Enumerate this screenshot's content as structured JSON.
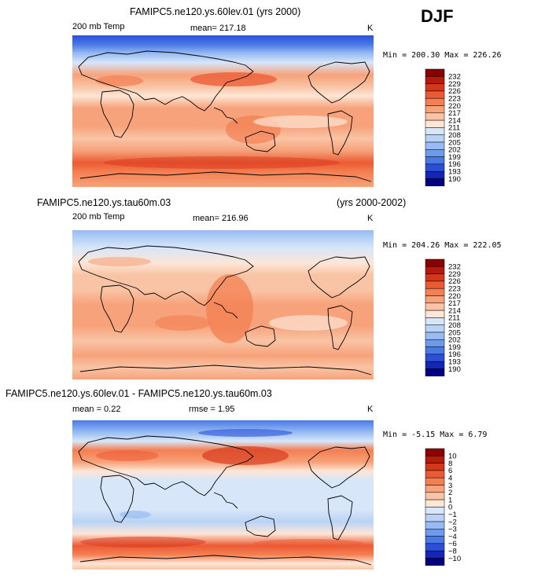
{
  "season_label": "DJF",
  "panels": [
    {
      "title": "FAMIPC5.ne120.ys.60lev.01 (yrs 2000)",
      "title_right": "",
      "left_label": "200 mb Temp",
      "mean_label": "mean= 217.18",
      "rmse_label": "",
      "units": "K",
      "minmax": "Min = 200.30 Max = 226.26",
      "colorbar_labels": [
        "232",
        "229",
        "226",
        "223",
        "220",
        "217",
        "214",
        "211",
        "208",
        "205",
        "202",
        "199",
        "196",
        "193",
        "190"
      ]
    },
    {
      "title": "FAMIPC5.ne120.ys.tau60m.03",
      "title_right": "(yrs 2000-2002)",
      "left_label": "200 mb Temp",
      "mean_label": "mean= 216.96",
      "rmse_label": "",
      "units": "K",
      "minmax": "Min = 204.26 Max = 222.05",
      "colorbar_labels": [
        "232",
        "229",
        "226",
        "223",
        "220",
        "217",
        "214",
        "211",
        "208",
        "205",
        "202",
        "199",
        "196",
        "193",
        "190"
      ]
    },
    {
      "title": "FAMIPC5.ne120.ys.60lev.01 - FAMIPC5.ne120.ys.tau60m.03",
      "title_right": "",
      "left_label": "mean =    0.22",
      "mean_label": "rmse =    1.95",
      "rmse_label": "",
      "units": "K",
      "minmax": "Min =  -5.15 Max =    6.79",
      "colorbar_labels": [
        "10",
        "8",
        "6",
        "4",
        "3",
        "2",
        "1",
        "0",
        "−1",
        "−2",
        "−3",
        "−4",
        "−6",
        "−8",
        "−10"
      ]
    }
  ],
  "colorbar_colors": [
    "#8b0000",
    "#b31b0b",
    "#d6361a",
    "#ec5a33",
    "#f47f52",
    "#f7a27a",
    "#f9c4a5",
    "#fde6d6",
    "#d7e6f8",
    "#b9d3f6",
    "#97bbf2",
    "#6d9bec",
    "#4a79e6",
    "#2a50d8",
    "#1426b5",
    "#000080"
  ],
  "chart_data": [
    {
      "type": "heatmap",
      "title": "FAMIPC5.ne120.ys.60lev.01 (yrs 2000)",
      "variable": "200 mb Temp",
      "units": "K",
      "mean": 217.18,
      "min": 200.3,
      "max": 226.26,
      "levels": [
        190,
        193,
        196,
        199,
        202,
        205,
        208,
        211,
        214,
        217,
        220,
        223,
        226,
        229,
        232
      ],
      "zonal_bands": [
        {
          "lat_from": 90,
          "lat_to": 70,
          "value": 205
        },
        {
          "lat_from": 70,
          "lat_to": 50,
          "value": 210
        },
        {
          "lat_from": 50,
          "lat_to": 35,
          "value": 219
        },
        {
          "lat_from": 35,
          "lat_to": 15,
          "value": 216
        },
        {
          "lat_from": 15,
          "lat_to": -15,
          "value": 219
        },
        {
          "lat_from": -15,
          "lat_to": -35,
          "value": 215
        },
        {
          "lat_from": -35,
          "lat_to": -50,
          "value": 218
        },
        {
          "lat_from": -50,
          "lat_to": -70,
          "value": 223
        },
        {
          "lat_from": -70,
          "lat_to": -90,
          "value": 217
        }
      ]
    },
    {
      "type": "heatmap",
      "title": "FAMIPC5.ne120.ys.tau60m.03 (yrs 2000-2002)",
      "variable": "200 mb Temp",
      "units": "K",
      "mean": 216.96,
      "min": 204.26,
      "max": 222.05,
      "levels": [
        190,
        193,
        196,
        199,
        202,
        205,
        208,
        211,
        214,
        217,
        220,
        223,
        226,
        229,
        232
      ],
      "zonal_bands": [
        {
          "lat_from": 90,
          "lat_to": 70,
          "value": 207
        },
        {
          "lat_from": 70,
          "lat_to": 50,
          "value": 212
        },
        {
          "lat_from": 50,
          "lat_to": 35,
          "value": 215
        },
        {
          "lat_from": 35,
          "lat_to": 15,
          "value": 213
        },
        {
          "lat_from": 15,
          "lat_to": -15,
          "value": 219
        },
        {
          "lat_from": -15,
          "lat_to": -35,
          "value": 217
        },
        {
          "lat_from": -35,
          "lat_to": -50,
          "value": 215
        },
        {
          "lat_from": -50,
          "lat_to": -70,
          "value": 216
        },
        {
          "lat_from": -70,
          "lat_to": -90,
          "value": 215
        }
      ]
    },
    {
      "type": "heatmap",
      "title": "FAMIPC5.ne120.ys.60lev.01 - FAMIPC5.ne120.ys.tau60m.03",
      "units": "K",
      "mean": 0.22,
      "rmse": 1.95,
      "min": -5.15,
      "max": 6.79,
      "levels": [
        -10,
        -8,
        -6,
        -4,
        -3,
        -2,
        -1,
        0,
        1,
        2,
        3,
        4,
        6,
        8,
        10
      ],
      "zonal_bands": [
        {
          "lat_from": 90,
          "lat_to": 70,
          "value": -3
        },
        {
          "lat_from": 70,
          "lat_to": 60,
          "value": -1
        },
        {
          "lat_from": 60,
          "lat_to": 40,
          "value": 4
        },
        {
          "lat_from": 40,
          "lat_to": 25,
          "value": 1
        },
        {
          "lat_from": 25,
          "lat_to": -35,
          "value": -1
        },
        {
          "lat_from": -35,
          "lat_to": -45,
          "value": 1
        },
        {
          "lat_from": -45,
          "lat_to": -65,
          "value": 4
        },
        {
          "lat_from": -65,
          "lat_to": -90,
          "value": 1
        }
      ]
    }
  ]
}
